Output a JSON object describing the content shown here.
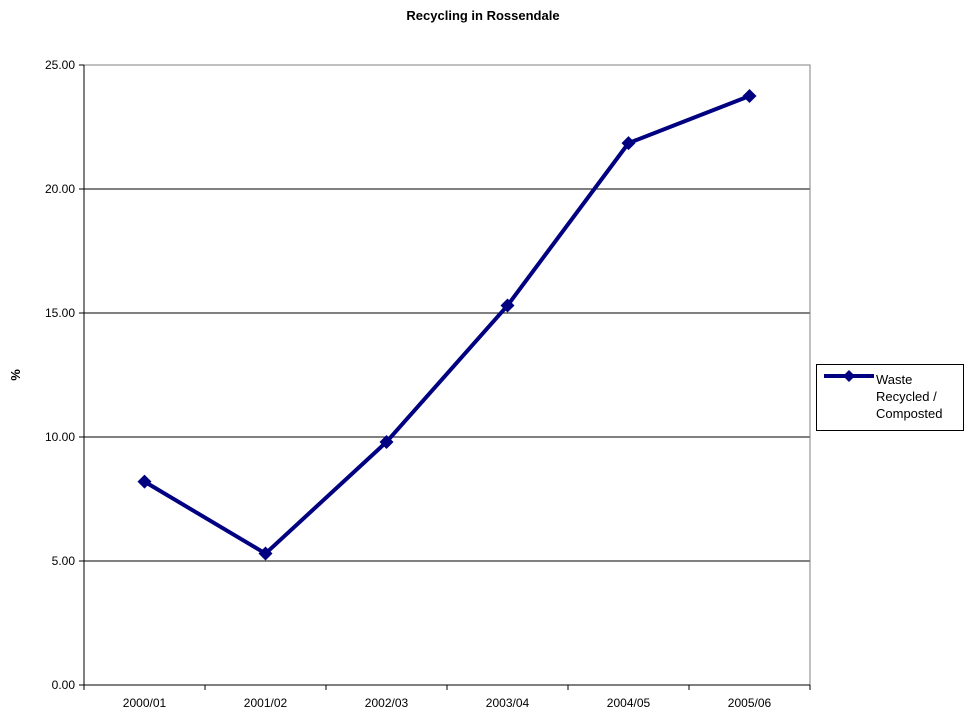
{
  "chart_data": {
    "type": "line",
    "title": "Recycling in Rossendale",
    "xlabel": "",
    "ylabel": "%",
    "categories": [
      "2000/01",
      "2001/02",
      "2002/03",
      "2003/04",
      "2004/05",
      "2005/06"
    ],
    "series": [
      {
        "name": "Waste Recycled / Composted",
        "values": [
          8.2,
          5.3,
          9.8,
          15.3,
          21.85,
          23.75
        ],
        "color": "#000080"
      }
    ],
    "ylim": [
      0,
      25
    ],
    "yticks": [
      "0.00",
      "5.00",
      "10.00",
      "15.00",
      "20.00",
      "25.00"
    ],
    "grid": true,
    "legend": "right",
    "marker": "diamond"
  }
}
